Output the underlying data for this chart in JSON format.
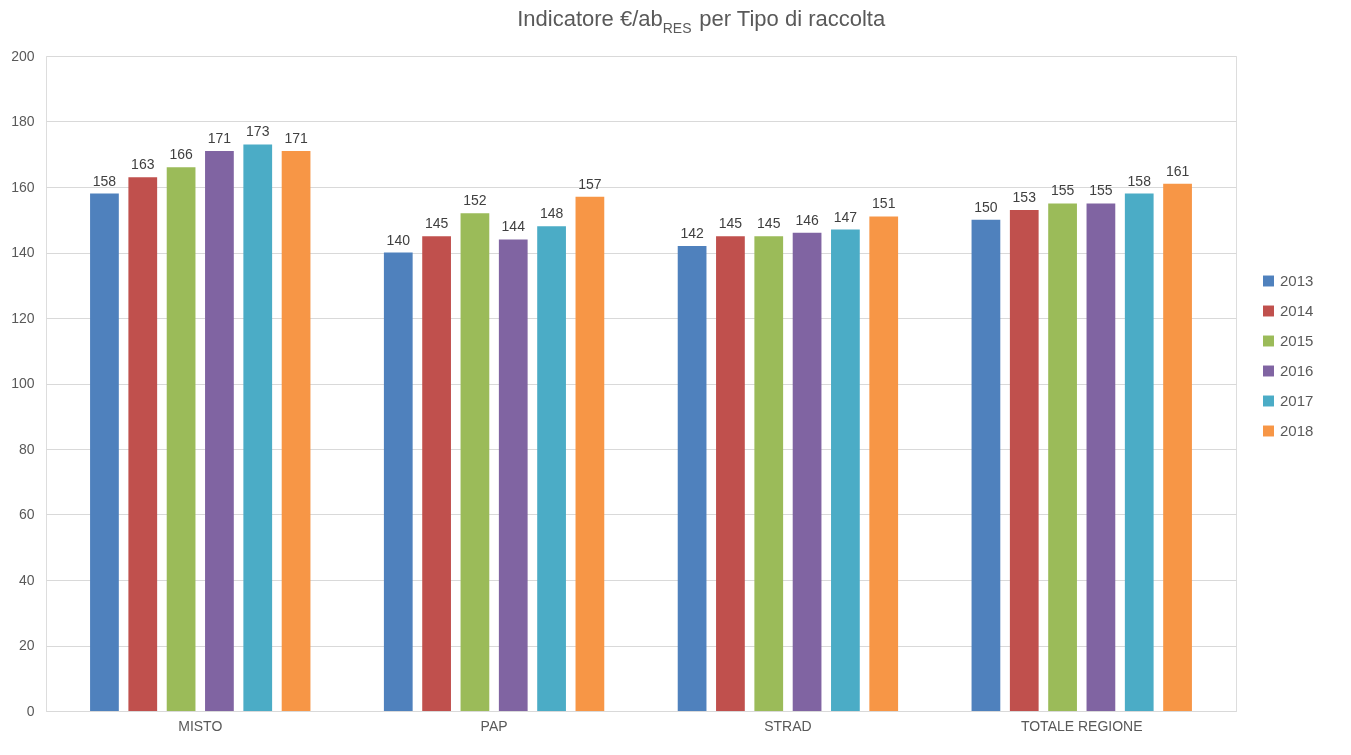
{
  "chart_data": {
    "type": "bar",
    "title": "Indicatore €/ab$_{RES}$ per Tipo di raccolta",
    "categories": [
      "MISTO",
      "PAP",
      "STRAD",
      "TOTALE REGIONE"
    ],
    "series": [
      {
        "name": "2013",
        "color": "#4f81bd",
        "values": [
          158,
          140,
          142,
          150
        ]
      },
      {
        "name": "2014",
        "color": "#c0504d",
        "values": [
          163,
          145,
          145,
          153
        ]
      },
      {
        "name": "2015",
        "color": "#9bbb59",
        "values": [
          166,
          152,
          145,
          155
        ]
      },
      {
        "name": "2016",
        "color": "#8064a2",
        "values": [
          171,
          144,
          146,
          155
        ]
      },
      {
        "name": "2017",
        "color": "#4bacc6",
        "values": [
          173,
          148,
          147,
          158
        ]
      },
      {
        "name": "2018",
        "color": "#f79646",
        "values": [
          171,
          157,
          151,
          161
        ]
      }
    ],
    "ylim": [
      0,
      200
    ],
    "yticks": [
      0,
      20,
      40,
      60,
      80,
      100,
      120,
      140,
      160,
      180,
      200
    ],
    "grid": "y",
    "legend": "right",
    "data_labels": true
  }
}
